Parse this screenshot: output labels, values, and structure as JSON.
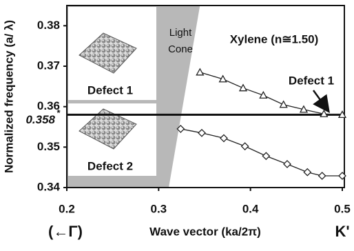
{
  "chart_data": {
    "type": "line",
    "annotation_title": "Xylene (n≅1.50)",
    "xlabel": "Wave vector (ka/2π)",
    "ylabel": "Normalized frequency (a/ λ)",
    "x_left_label": "(←Γ)",
    "x_right_label": "K'",
    "xlim": [
      0.2,
      0.5
    ],
    "xticks": [
      0.2,
      0.3,
      0.4,
      0.5
    ],
    "ylim": [
      0.34,
      0.385
    ],
    "yticks": [
      0.34,
      0.35,
      0.36,
      0.37,
      0.38
    ],
    "light_cone": {
      "label_lines": [
        "Light",
        "Cone"
      ],
      "x_at_ylim": [
        0.311,
        0.345
      ],
      "color": "#b8b8b8"
    },
    "reference_line": {
      "value": 0.358,
      "label": "0.358",
      "marker": "*"
    },
    "pointer_label": "Defect 1",
    "insets": [
      "Defect 1",
      "Defect 2"
    ],
    "series": [
      {
        "marker": "triangle",
        "color": "#222",
        "x": [
          0.345,
          0.37,
          0.392,
          0.414,
          0.436,
          0.458,
          0.48,
          0.5
        ],
        "values": [
          0.3685,
          0.3668,
          0.3646,
          0.3628,
          0.3605,
          0.3593,
          0.3582,
          0.358
        ]
      },
      {
        "marker": "diamond",
        "color": "#222",
        "x": [
          0.324,
          0.347,
          0.371,
          0.394,
          0.417,
          0.44,
          0.462,
          0.478,
          0.5
        ],
        "values": [
          0.3545,
          0.3535,
          0.3522,
          0.3502,
          0.3478,
          0.3458,
          0.3438,
          0.3429,
          0.3429
        ]
      }
    ]
  }
}
